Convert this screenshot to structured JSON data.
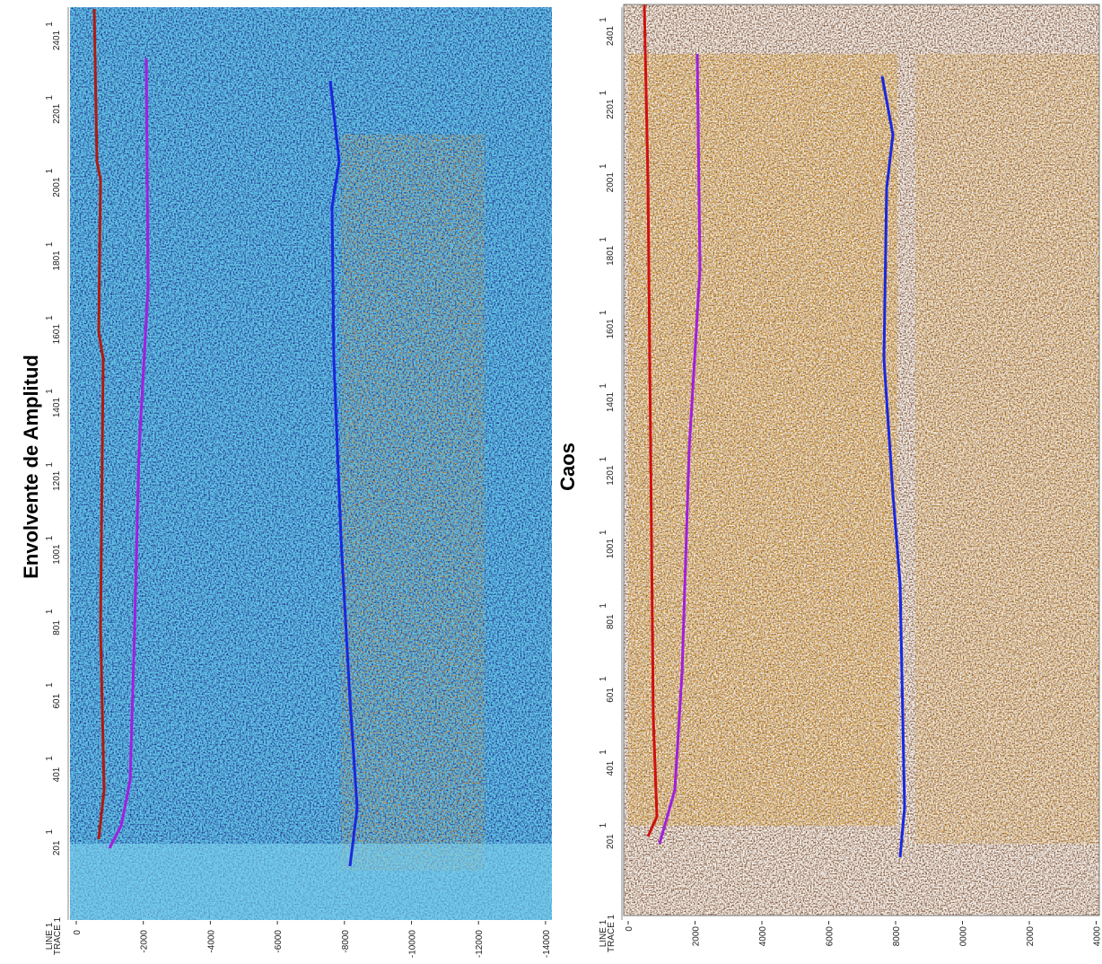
{
  "panels": [
    {
      "title": "Envolvente de Amplitud",
      "line_number": "1",
      "trace_ticks": [
        "2401",
        "2201",
        "2001",
        "1801",
        "1601",
        "1401",
        "1201",
        "1001",
        "801",
        "601",
        "401",
        "201"
      ],
      "origin_label": [
        "LINE 1",
        "TRACE 1"
      ],
      "x_ticks": [
        "0",
        "-2000",
        "-4000",
        "-6000",
        "-8000",
        "-10000",
        "-12000",
        "-14000"
      ]
    },
    {
      "title": "Caos",
      "line_number": "1",
      "trace_ticks": [
        "2401",
        "2201",
        "2001",
        "1801",
        "1601",
        "1401",
        "1201",
        "1001",
        "801",
        "601",
        "401",
        "201"
      ],
      "origin_label": [
        "LINE 1",
        "TRACE 1"
      ],
      "x_ticks": [
        "0",
        "2000",
        "4000",
        "6000",
        "8000",
        "0000",
        "2000",
        "4000"
      ]
    }
  ]
}
